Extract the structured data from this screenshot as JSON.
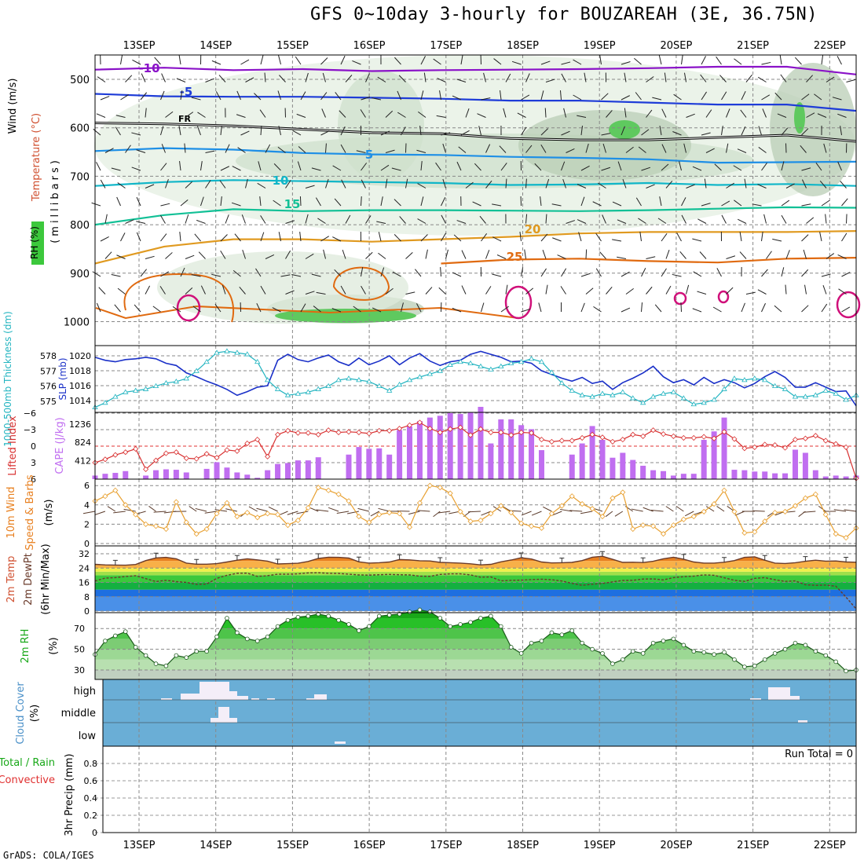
{
  "title": "GFS 0~10day 3-hourly for BOUZAREAH (3E, 36.75N)",
  "footer": "GrADS: COLA/IGES",
  "colors": {
    "cloud_bg": "#6aaed6",
    "precip_grid": "#999999",
    "rh_green": "#2ec82e"
  },
  "chart_data": {
    "type": "meteogram",
    "dates": [
      "13SEP",
      "14SEP",
      "15SEP",
      "16SEP",
      "17SEP",
      "18SEP",
      "19SEP",
      "20SEP",
      "21SEP",
      "22SEP"
    ],
    "panels": {
      "upper_air": {
        "ylabels": [
          "Wind (m/s)",
          "Temperature (°C)",
          "RH (%)"
        ],
        "axis_title": "(millibars)",
        "levels": [
          500,
          600,
          700,
          800,
          900,
          1000
        ],
        "isotherms": [
          {
            "label": "-10",
            "p": [
              480,
              476,
              481,
              479,
              483,
              481,
              480,
              479,
              477,
              474,
              474,
              490
            ]
          },
          {
            "label": "-5",
            "p": [
              530,
              535,
              536,
              536,
              538,
              540,
              544,
              544,
              548,
              552,
              552,
              565
            ]
          },
          {
            "label": "FR",
            "p": [
              590,
              592,
              596,
              603,
              610,
              612,
              622,
              625,
              625,
              620,
              615,
              628
            ]
          },
          {
            "label": "5",
            "p": [
              648,
              642,
              645,
              652,
              655,
              656,
              660,
              662,
              665,
              672,
              671,
              670
            ]
          },
          {
            "label": "10",
            "p": [
              720,
              712,
              708,
              710,
              712,
              714,
              718,
              717,
              714,
              718,
              716,
              720
            ]
          },
          {
            "label": "15",
            "p": [
              800,
              780,
              768,
              772,
              770,
              770,
              771,
              772,
              770,
              767,
              764,
              765
            ]
          },
          {
            "label": "20",
            "p": [
              880,
              845,
              830,
              830,
              835,
              830,
              825,
              818,
              815,
              815,
              815,
              813
            ]
          },
          {
            "label": "25",
            "p": [
              null,
              null,
              null,
              null,
              null,
              880,
              872,
              870,
              875,
              878,
              870,
              868
            ]
          }
        ]
      },
      "slp_thickness": {
        "ylabels": [
          "1000-500mb Thickness (dm)",
          "SLP (mb)"
        ],
        "thickness_ticks": [
          578,
          577,
          576,
          575
        ],
        "slp_ticks": [
          1020,
          1018,
          1016,
          1014
        ],
        "thickness_dm": [
          574.6,
          574.9,
          575.3,
          575.6,
          575.7,
          575.8,
          576.0,
          576.2,
          576.3,
          576.5,
          577.0,
          577.6,
          578.2,
          578.3,
          578.2,
          578.1,
          577.6,
          576.4,
          575.8,
          575.4,
          575.5,
          575.6,
          575.8,
          576.0,
          576.4,
          576.5,
          576.4,
          576.3,
          576.0,
          575.7,
          576.1,
          576.4,
          576.6,
          576.8,
          577.0,
          577.4,
          577.6,
          577.5,
          577.3,
          577.1,
          577.3,
          577.5,
          577.6,
          577.8,
          577.6,
          576.9,
          576.2,
          575.7,
          575.4,
          575.3,
          575.5,
          575.4,
          575.6,
          575.2,
          574.9,
          575.3,
          575.5,
          575.6,
          575.2,
          574.8,
          574.9,
          575.1,
          575.8,
          576.5,
          576.4,
          576.5,
          576.4,
          576.0,
          575.8,
          575.3,
          575.3,
          575.4,
          575.7,
          575.5,
          575.1,
          575.4
        ],
        "slp_mb": [
          1019.8,
          1019.4,
          1019.2,
          1019.5,
          1019.6,
          1019.8,
          1019.6,
          1019.0,
          1018.7,
          1017.7,
          1017.2,
          1016.6,
          1016.1,
          1015.5,
          1014.7,
          1015.2,
          1015.8,
          1016.0,
          1019.4,
          1020.2,
          1019.5,
          1019.2,
          1019.7,
          1020.1,
          1019.2,
          1018.7,
          1019.7,
          1018.8,
          1019.3,
          1020.0,
          1018.8,
          1019.7,
          1020.3,
          1019.3,
          1018.7,
          1019.2,
          1019.4,
          1020.2,
          1020.6,
          1020.2,
          1019.8,
          1019.2,
          1019.3,
          1019.0,
          1018.0,
          1017.5,
          1017.0,
          1016.6,
          1017.1,
          1016.3,
          1016.6,
          1015.5,
          1016.4,
          1017.0,
          1017.7,
          1018.6,
          1017.2,
          1016.4,
          1016.8,
          1016.1,
          1017.1,
          1016.3,
          1016.8,
          1016.4,
          1015.7,
          1016.3,
          1017.2,
          1017.9,
          1017.1,
          1015.8,
          1015.8,
          1016.4,
          1015.8,
          1015.2,
          1015.3,
          1013.3
        ]
      },
      "cape_li": {
        "ylabels": [
          "Lifted Index",
          "CAPE (J/kg)"
        ],
        "li_ticks": [
          -6,
          -3,
          0,
          3,
          6
        ],
        "cape_ticks": [
          1236,
          824,
          412
        ],
        "cape": [
          80,
          120,
          140,
          180,
          0,
          80,
          200,
          220,
          210,
          150,
          0,
          230,
          380,
          260,
          150,
          100,
          30,
          200,
          340,
          360,
          420,
          420,
          490,
          0,
          0,
          550,
          720,
          680,
          690,
          550,
          1100,
          1180,
          1300,
          1380,
          1420,
          1480,
          1460,
          1500,
          1620,
          800,
          1340,
          1340,
          1210,
          1120,
          650,
          0,
          0,
          550,
          800,
          1190,
          880,
          480,
          590,
          430,
          300,
          200,
          180,
          80,
          120,
          120,
          880,
          1070,
          1380,
          210,
          200,
          170,
          170,
          130,
          130,
          660,
          590,
          200,
          60,
          80,
          60,
          80
        ],
        "li": [
          3.0,
          2.4,
          1.6,
          1.1,
          0.5,
          4.2,
          2.6,
          1.3,
          1.1,
          2.2,
          2.3,
          1.4,
          2.1,
          0.7,
          0.9,
          -0.5,
          -1.2,
          1.9,
          -2.1,
          -2.8,
          -2.4,
          -2.4,
          -2.1,
          -2.9,
          -2.5,
          -2.6,
          -2.5,
          -2.3,
          -2.8,
          -2.8,
          -3.2,
          -3.8,
          -4.3,
          -3.2,
          -2.5,
          -3.1,
          -3.4,
          -2.0,
          -3.1,
          -2.5,
          -2.5,
          -2.0,
          -2.5,
          -2.4,
          -1.2,
          -0.8,
          -1.0,
          -1.0,
          -1.5,
          -2.1,
          -1.6,
          -0.8,
          -1.2,
          -2.1,
          -1.8,
          -2.9,
          -2.2,
          -1.8,
          -1.5,
          -1.5,
          -1.7,
          -1.4,
          -2.6,
          -1.3,
          0.4,
          0.2,
          -0.3,
          -0.2,
          0.3,
          -1.2,
          -1.4,
          -1.9,
          -1.0,
          -0.4,
          0.2,
          7.0
        ]
      },
      "wind10m": {
        "ylabels": [
          "10m Wind",
          "Speed & Barbs",
          "(m/s)"
        ],
        "ticks": [
          6,
          4,
          2,
          0
        ],
        "speed": [
          4.4,
          4.9,
          5.5,
          4.0,
          3.0,
          2.0,
          1.8,
          1.5,
          4.3,
          2.2,
          1.0,
          1.5,
          3.1,
          4.2,
          2.8,
          3.2,
          2.7,
          3.1,
          3.0,
          1.9,
          2.4,
          3.7,
          5.8,
          5.5,
          5.1,
          4.4,
          2.8,
          2.2,
          3.0,
          3.2,
          3.1,
          1.7,
          4.2,
          6.0,
          5.8,
          5.2,
          3.3,
          2.3,
          2.4,
          3.1,
          3.9,
          3.2,
          2.1,
          1.8,
          1.6,
          3.1,
          3.9,
          4.9,
          4.1,
          3.6,
          2.8,
          4.7,
          5.3,
          1.5,
          1.9,
          1.8,
          1.0,
          1.9,
          2.5,
          2.8,
          3.3,
          4.1,
          5.5,
          3.3,
          1.1,
          1.2,
          2.3,
          3.2,
          3.3,
          3.9,
          4.7,
          5.1,
          3.0,
          1.0,
          0.6,
          1.6
        ]
      },
      "temp2m": {
        "ylabels": [
          "2m Temp",
          "2m DewPt",
          "(6hr Min/Max)"
        ],
        "ticks": [
          32,
          24,
          16,
          8,
          0
        ],
        "temp": [
          26.1,
          25.8,
          25.7,
          25.6,
          26.0,
          28.2,
          29.7,
          30.0,
          29.2,
          26.8,
          26.2,
          26.2,
          26.5,
          27.4,
          28.4,
          29.2,
          28.6,
          27.9,
          26.3,
          26.5,
          26.7,
          27.7,
          29.4,
          30.1,
          30.0,
          29.6,
          27.5,
          26.8,
          27.0,
          27.4,
          28.8,
          28.6,
          28.1,
          28.0,
          27.2,
          27.0,
          26.8,
          26.4,
          25.8,
          26.1,
          27.5,
          28.5,
          29.8,
          29.1,
          27.4,
          26.9,
          27.0,
          27.2,
          28.2,
          30.1,
          30.6,
          28.9,
          27.2,
          27.3,
          27.1,
          27.8,
          29.2,
          30.1,
          29.0,
          27.4,
          26.8,
          26.8,
          27.3,
          28.2,
          30.0,
          30.3,
          28.4,
          26.8,
          26.6,
          27.0,
          27.8,
          28.4,
          27.9,
          28.0,
          27.4,
          27.3
        ],
        "dewpt": [
          16.8,
          18.4,
          18.7,
          19.3,
          19.8,
          18.1,
          16.5,
          17.2,
          16.5,
          16.0,
          14.9,
          15.1,
          18.3,
          20.0,
          21.1,
          21.2,
          19.4,
          19.8,
          20.6,
          20.6,
          20.8,
          21.3,
          21.4,
          21.1,
          21.0,
          20.6,
          20.2,
          20.1,
          20.3,
          20.5,
          20.3,
          20.2,
          19.5,
          19.4,
          20.5,
          20.8,
          20.8,
          20.2,
          18.9,
          19.1,
          16.9,
          17.2,
          17.3,
          17.6,
          17.8,
          17.5,
          16.8,
          15.5,
          14.4,
          15.0,
          15.4,
          16.3,
          17.1,
          17.2,
          17.9,
          18.0,
          17.4,
          18.7,
          19.2,
          19.5,
          20.2,
          20.0,
          18.6,
          17.2,
          16.6,
          18.3,
          18.7,
          17.5,
          16.6,
          16.9,
          14.7,
          14.4,
          14.5,
          13.9,
          7.8,
          1.2
        ]
      },
      "rh2m": {
        "ylabels": [
          "2m RH",
          "(%)"
        ],
        "ticks": [
          70,
          50,
          30
        ],
        "rh": [
          45,
          58,
          63,
          67,
          52,
          44,
          36,
          34,
          44,
          42,
          48,
          48,
          62,
          80,
          66,
          60,
          58,
          62,
          72,
          78,
          81,
          82,
          84,
          82,
          78,
          74,
          68,
          72,
          82,
          83,
          84,
          86,
          88,
          86,
          80,
          72,
          74,
          76,
          80,
          82,
          72,
          52,
          46,
          56,
          58,
          66,
          64,
          68,
          56,
          50,
          46,
          36,
          40,
          48,
          46,
          56,
          58,
          60,
          54,
          48,
          47,
          45,
          47,
          40,
          33,
          34,
          40,
          46,
          50,
          56,
          54,
          48,
          44,
          38,
          29,
          30
        ]
      },
      "cloud": {
        "ylabels": [
          "Cloud Cover",
          "(%)"
        ],
        "ticks": [
          "high",
          "middle",
          "low"
        ]
      },
      "precip": {
        "ylabels": [
          "Total / Rain",
          "Convective",
          "3hr Precip (mm)"
        ],
        "ticks": [
          0.8,
          0.6,
          0.4,
          0.2,
          0
        ],
        "run_total": "Run Total = 0"
      }
    }
  }
}
